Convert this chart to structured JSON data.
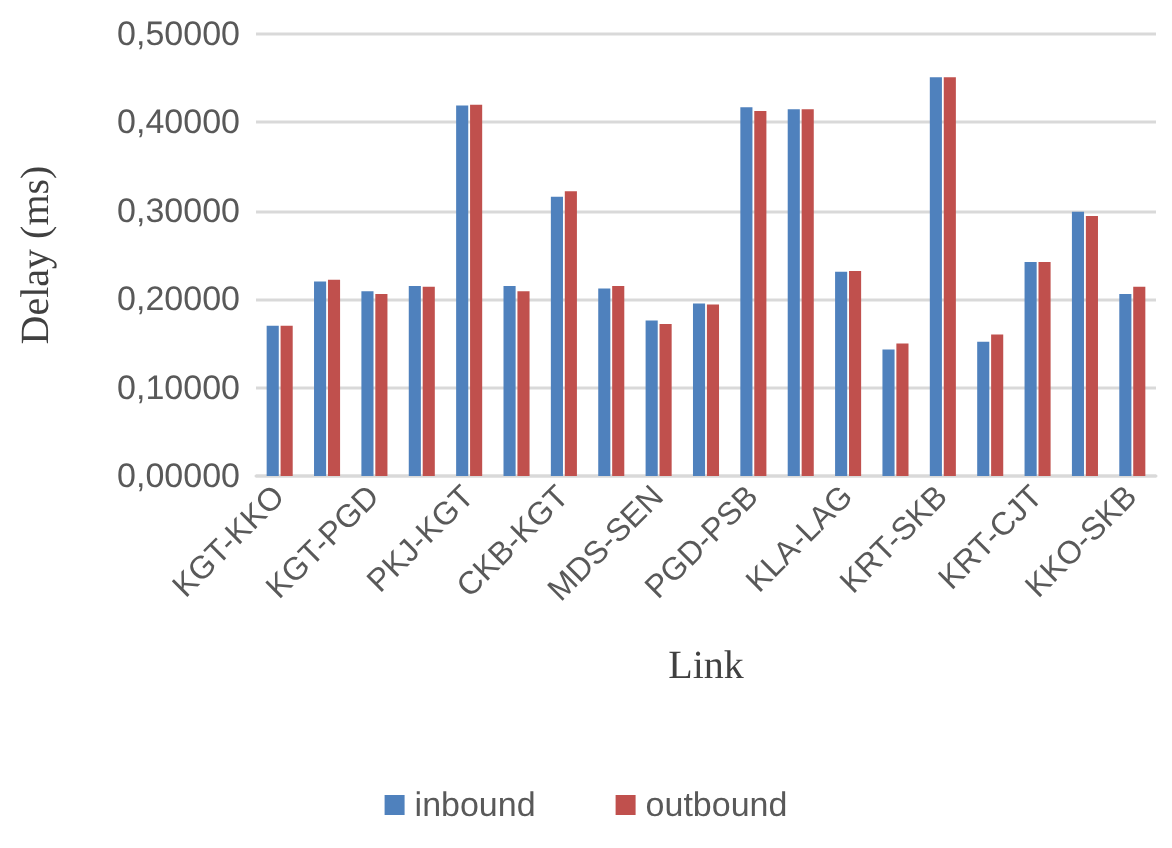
{
  "chart_data": {
    "type": "bar",
    "xlabel": "Link",
    "ylabel": "Delay (ms)",
    "categories": [
      "KGT-KKO",
      null,
      "KGT-PGD",
      null,
      "PKJ-KGT",
      null,
      "CKB-KGT",
      null,
      "MDS-SEN",
      null,
      "PGD-PSB",
      null,
      "KLA-LAG",
      null,
      "KRT-SKB",
      null,
      "KRT-CJT",
      null,
      "KKO-SKB"
    ],
    "series": [
      {
        "name": "inbound",
        "color": "#4f81bd",
        "values": [
          0.17,
          0.22,
          0.209,
          0.215,
          0.419,
          0.215,
          0.316,
          0.212,
          0.176,
          0.195,
          0.417,
          0.415,
          0.231,
          0.143,
          0.451,
          0.152,
          0.242,
          0.299,
          0.206
        ]
      },
      {
        "name": "outbound",
        "color": "#c0504d",
        "values": [
          0.17,
          0.222,
          0.206,
          0.214,
          0.42,
          0.209,
          0.322,
          0.215,
          0.172,
          0.194,
          0.413,
          0.415,
          0.232,
          0.15,
          0.451,
          0.16,
          0.242,
          0.294,
          0.214
        ]
      }
    ],
    "ylim": [
      0,
      0.5
    ],
    "yticks": [
      {
        "value": 0,
        "label": "0,00000"
      },
      {
        "value": 0.1,
        "label": "0,10000"
      },
      {
        "value": 0.2,
        "label": "0,20000"
      },
      {
        "value": 0.3,
        "label": "0,30000"
      },
      {
        "value": 0.4,
        "label": "0,40000"
      },
      {
        "value": 0.5,
        "label": "0,50000"
      }
    ],
    "grid": "y",
    "legend": "bottom"
  }
}
